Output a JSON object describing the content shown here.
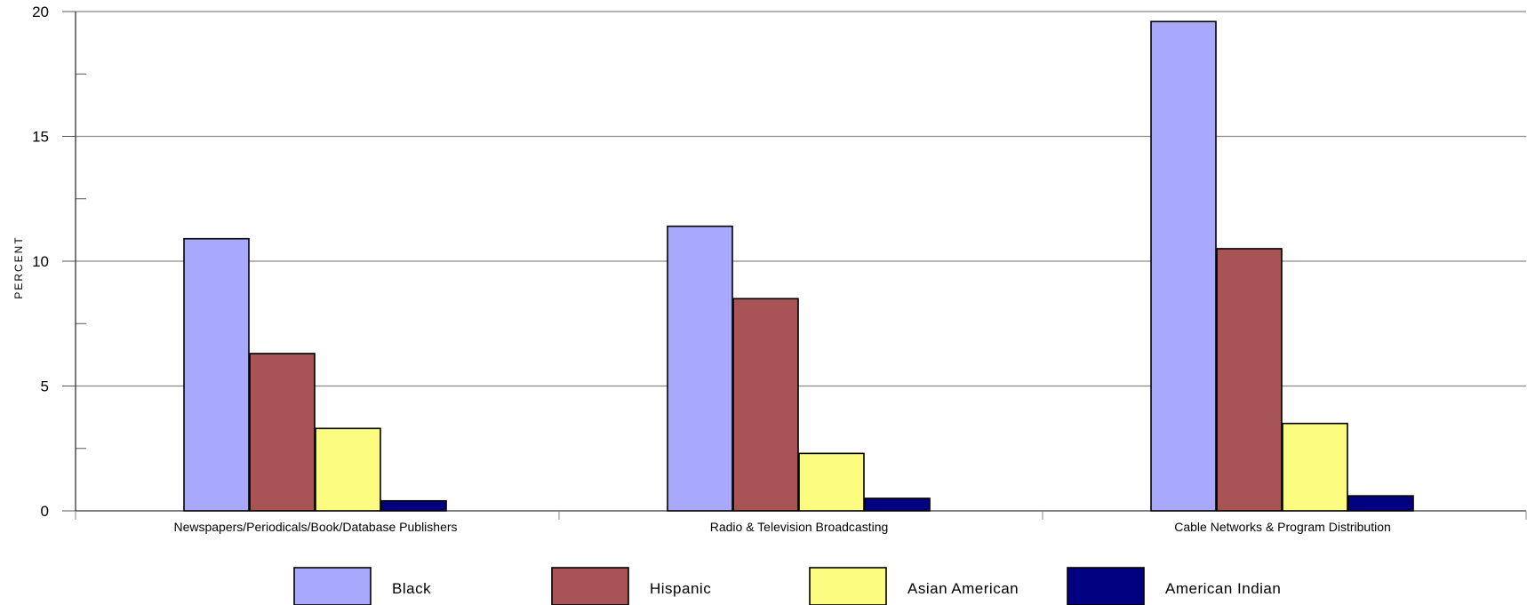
{
  "chart_data": {
    "type": "bar",
    "categories": [
      "Newspapers/Periodicals/Book/Database Publishers",
      "Radio & Television Broadcasting",
      "Cable Networks & Program Distribution"
    ],
    "series": [
      {
        "name": "Black",
        "color": "#a8a8fc",
        "values": [
          10.9,
          11.4,
          19.6
        ]
      },
      {
        "name": "Hispanic",
        "color": "#a85454",
        "values": [
          6.3,
          8.5,
          10.5
        ]
      },
      {
        "name": "Asian American",
        "color": "#fcfc80",
        "values": [
          3.3,
          2.3,
          3.5
        ]
      },
      {
        "name": "American Indian",
        "color": "#000080",
        "values": [
          0.4,
          0.5,
          0.6
        ]
      }
    ],
    "ylabel": "PERCENT",
    "xlabel": "",
    "ylim": [
      0,
      20
    ],
    "yticks": [
      "0",
      "5",
      "10",
      "15",
      "20"
    ],
    "grid": true,
    "legend_position": "bottom"
  }
}
